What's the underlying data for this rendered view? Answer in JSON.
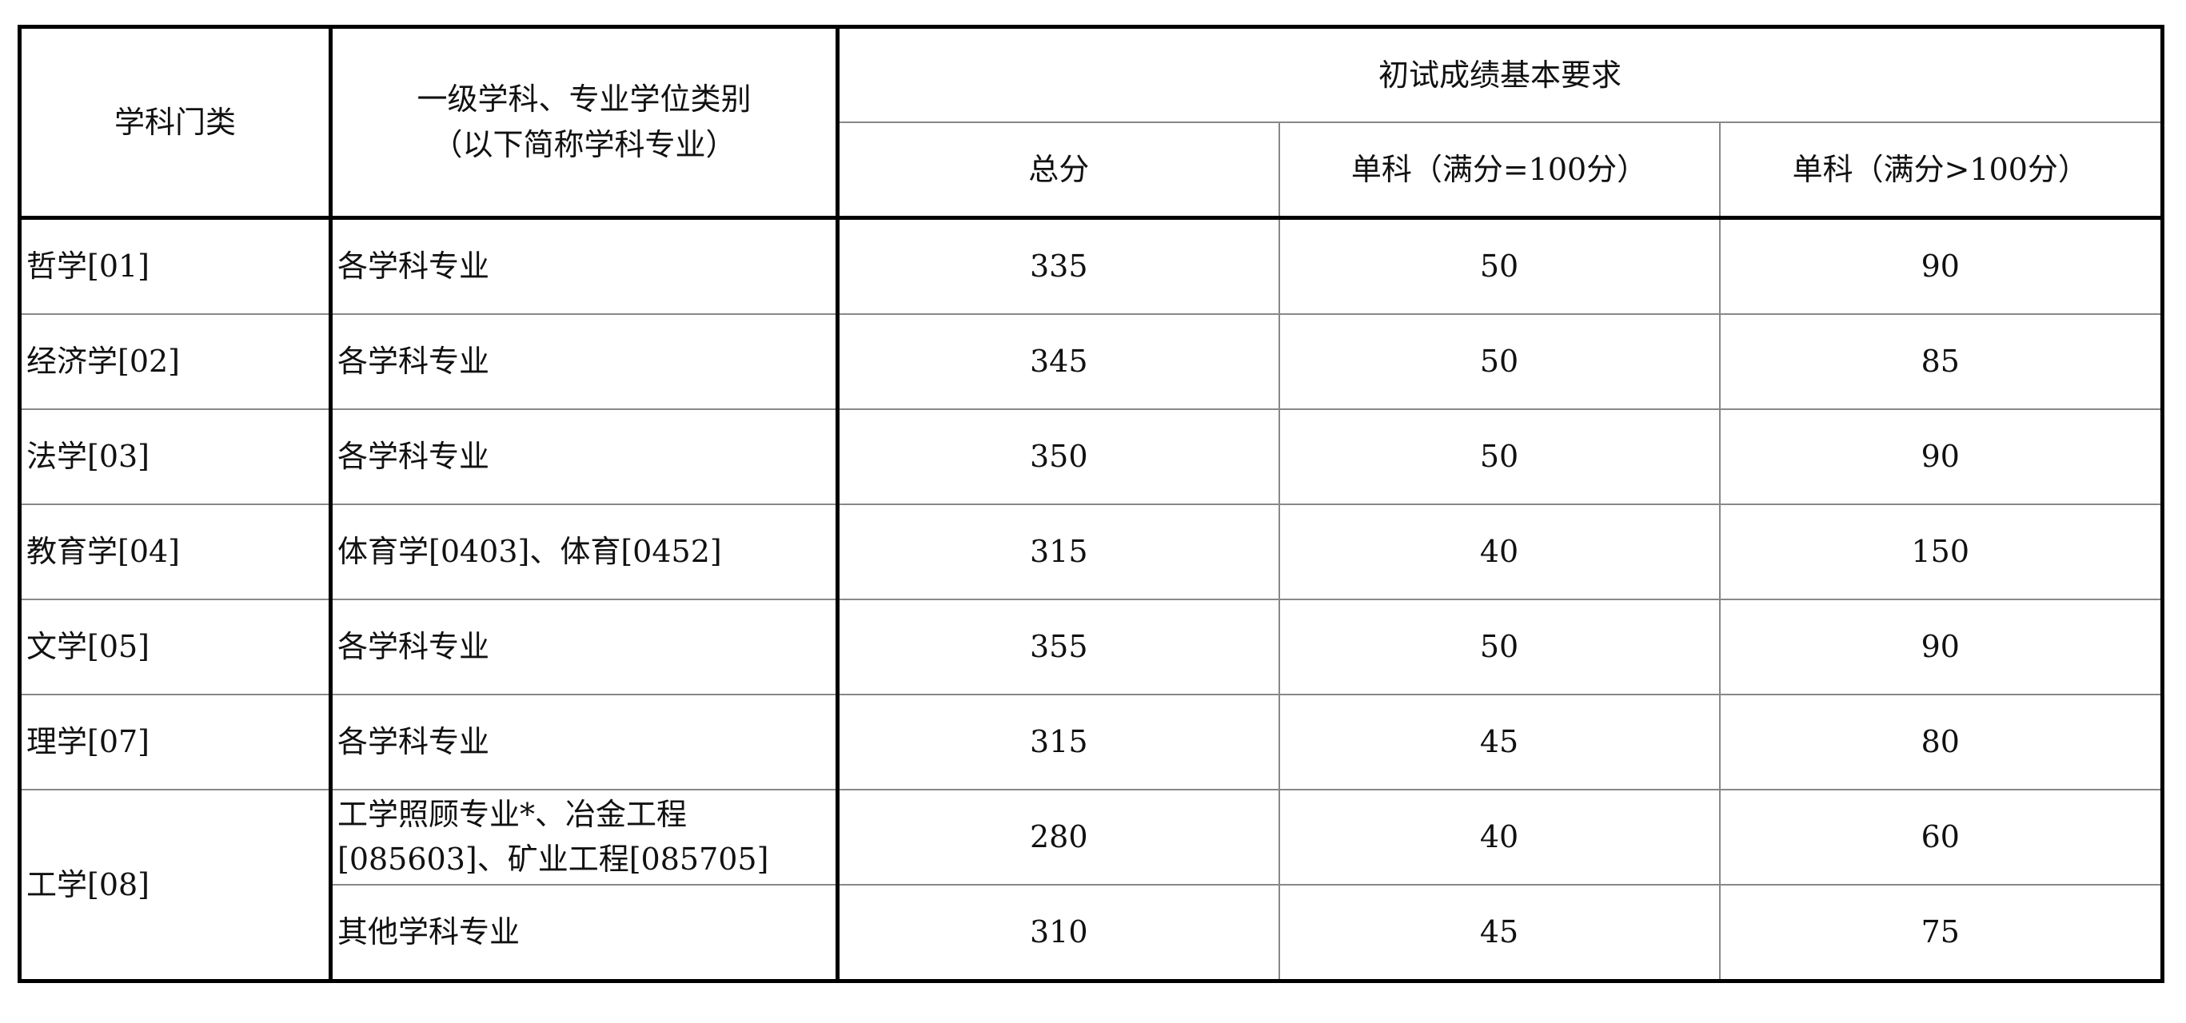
{
  "header": {
    "category": "学科门类",
    "discipline_line1": "一级学科、专业学位类别",
    "discipline_line2": "（以下简称学科专业）",
    "requirements": "初试成绩基本要求",
    "total": "总分",
    "single_100": "单科（满分=100分）",
    "single_over_100": "单科（满分>100分）"
  },
  "rows": [
    {
      "category": "哲学[01]",
      "discipline": "各学科专业",
      "total": "335",
      "single_100": "50",
      "single_over_100": "90"
    },
    {
      "category": "经济学[02]",
      "discipline": "各学科专业",
      "total": "345",
      "single_100": "50",
      "single_over_100": "85"
    },
    {
      "category": "法学[03]",
      "discipline": "各学科专业",
      "total": "350",
      "single_100": "50",
      "single_over_100": "90"
    },
    {
      "category": "教育学[04]",
      "discipline": "体育学[0403]、体育[0452]",
      "total": "315",
      "single_100": "40",
      "single_over_100": "150"
    },
    {
      "category": "文学[05]",
      "discipline": "各学科专业",
      "total": "355",
      "single_100": "50",
      "single_over_100": "90"
    },
    {
      "category": "理学[07]",
      "discipline": "各学科专业",
      "total": "315",
      "single_100": "45",
      "single_over_100": "80"
    }
  ],
  "engineering": {
    "category": "工学[08]",
    "sub": [
      {
        "discipline_line1": "工学照顾专业*、冶金工程",
        "discipline_line2": "[085603]、矿业工程[085705]",
        "total": "280",
        "single_100": "40",
        "single_over_100": "60"
      },
      {
        "discipline": "其他学科专业",
        "total": "310",
        "single_100": "45",
        "single_over_100": "75"
      }
    ]
  }
}
